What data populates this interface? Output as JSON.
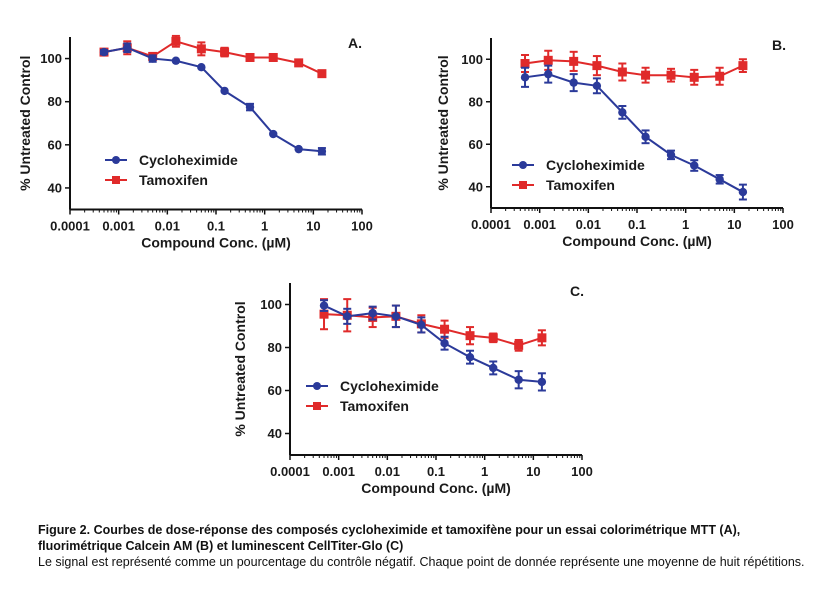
{
  "chart_data": [
    {
      "type": "line",
      "panel": "A.",
      "title": "",
      "xlabel": "Compound Conc. (µM)",
      "ylabel": "% Untreated Control",
      "xscale": "log",
      "xlim": [
        0.0001,
        100
      ],
      "ylim": [
        30,
        110
      ],
      "xticks": [
        "0.0001",
        "0.001",
        "0.01",
        "0.1",
        "1",
        "10",
        "100"
      ],
      "yticks": [
        "40",
        "60",
        "80",
        "100"
      ],
      "legend_position": "lower-left",
      "x": [
        0.0005,
        0.0015,
        0.005,
        0.015,
        0.05,
        0.15,
        0.5,
        1.5,
        5,
        15
      ],
      "series": [
        {
          "name": "Cycloheximide",
          "marker": "circle",
          "color": "#2b3a9a",
          "values": [
            103,
            105,
            100,
            99,
            96,
            85,
            77.5,
            65,
            58,
            57
          ],
          "errors": [
            1,
            2,
            1.5,
            0.5,
            0.5,
            0.5,
            1.5,
            0.5,
            0.5,
            1.5
          ]
        },
        {
          "name": "Tamoxifen",
          "marker": "square",
          "color": "#e02a2a",
          "values": [
            103,
            105,
            101,
            108,
            104.5,
            103,
            100.5,
            100.5,
            98,
            93
          ],
          "errors": [
            0.5,
            3,
            0.5,
            2.5,
            3,
            2,
            0.5,
            0.5,
            0.5,
            0.5
          ]
        }
      ]
    },
    {
      "type": "line",
      "panel": "B.",
      "title": "",
      "xlabel": "Compound Conc. (µM)",
      "ylabel": "% Untreated Control",
      "xscale": "log",
      "xlim": [
        0.0001,
        100
      ],
      "ylim": [
        30,
        110
      ],
      "xticks": [
        "0.0001",
        "0.001",
        "0.01",
        "0.1",
        "1",
        "10",
        "100"
      ],
      "yticks": [
        "40",
        "60",
        "80",
        "100"
      ],
      "legend_position": "lower-left",
      "x": [
        0.0005,
        0.0015,
        0.005,
        0.015,
        0.05,
        0.15,
        0.5,
        1.5,
        5,
        15
      ],
      "series": [
        {
          "name": "Cycloheximide",
          "marker": "circle",
          "color": "#2b3a9a",
          "values": [
            91.5,
            93,
            89,
            87.5,
            75,
            63.5,
            55,
            50,
            43.5,
            37.5
          ],
          "errors": [
            4.5,
            4,
            4,
            3.5,
            3,
            3,
            2,
            2.5,
            2,
            3.5
          ]
        },
        {
          "name": "Tamoxifen",
          "marker": "square",
          "color": "#e02a2a",
          "values": [
            98,
            99.5,
            99,
            97,
            94,
            92.5,
            92.5,
            91.5,
            92,
            97
          ],
          "errors": [
            4,
            4.5,
            4.5,
            4.5,
            4,
            3.5,
            3,
            3.5,
            4,
            3
          ]
        }
      ]
    },
    {
      "type": "line",
      "panel": "C.",
      "title": "",
      "xlabel": "Compound Conc. (µM)",
      "ylabel": "% Untreated Control",
      "xscale": "log",
      "xlim": [
        0.0001,
        100
      ],
      "ylim": [
        30,
        110
      ],
      "xticks": [
        "0.0001",
        "0.001",
        "0.01",
        "0.1",
        "1",
        "10",
        "100"
      ],
      "yticks": [
        "40",
        "60",
        "80",
        "100"
      ],
      "legend_position": "lower-left",
      "x": [
        0.0005,
        0.0015,
        0.005,
        0.015,
        0.05,
        0.15,
        0.5,
        1.5,
        5,
        15
      ],
      "series": [
        {
          "name": "Cycloheximide",
          "marker": "circle",
          "color": "#2b3a9a",
          "values": [
            99.5,
            94.5,
            96,
            94.5,
            90.5,
            82,
            75.5,
            70.5,
            65,
            64
          ],
          "errors": [
            2.5,
            3.5,
            3,
            5,
            3.5,
            3,
            3,
            3,
            4,
            4
          ]
        },
        {
          "name": "Tamoxifen",
          "marker": "square",
          "color": "#e02a2a",
          "values": [
            95.5,
            95,
            94,
            94.5,
            91,
            88.5,
            85.5,
            84.5,
            81,
            84.5
          ],
          "errors": [
            7,
            7.5,
            4.5,
            5,
            4,
            4,
            4,
            2,
            2.5,
            3.5
          ]
        }
      ]
    }
  ],
  "caption": {
    "title": "Figure 2. Courbes de dose-réponse des composés cycloheximide et tamoxifène pour un essai colorimétrique MTT (A), fluorimétrique Calcein AM (B) et luminescent CellTiter-Glo (C)",
    "body": "Le signal est représenté comme un pourcentage du contrôle négatif. Chaque point de donnée représente une moyenne de huit répétitions."
  }
}
